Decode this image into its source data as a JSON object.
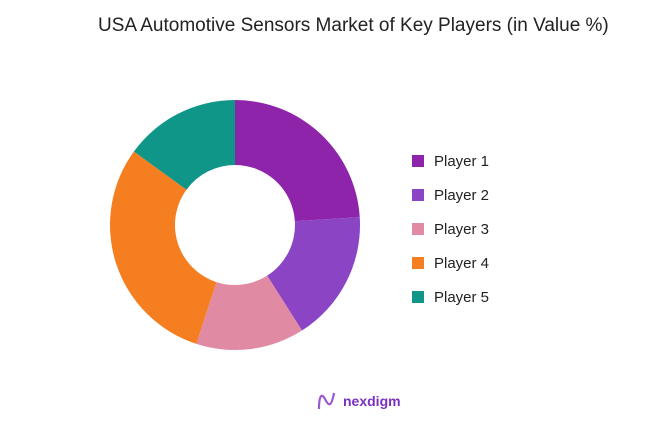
{
  "chart_data": {
    "type": "pie",
    "donut": true,
    "title": "USA Automotive Sensors Market of Key Players (in Value %)",
    "categories": [
      "Player 1",
      "Player 2",
      "Player 3",
      "Player 4",
      "Player 5"
    ],
    "values": [
      24,
      17,
      14,
      30,
      15
    ],
    "colors": [
      "#8e24aa",
      "#8a44c4",
      "#e08aa4",
      "#f57f20",
      "#0f9688"
    ],
    "legend": "right"
  },
  "brand": {
    "name": "nexdigm"
  }
}
